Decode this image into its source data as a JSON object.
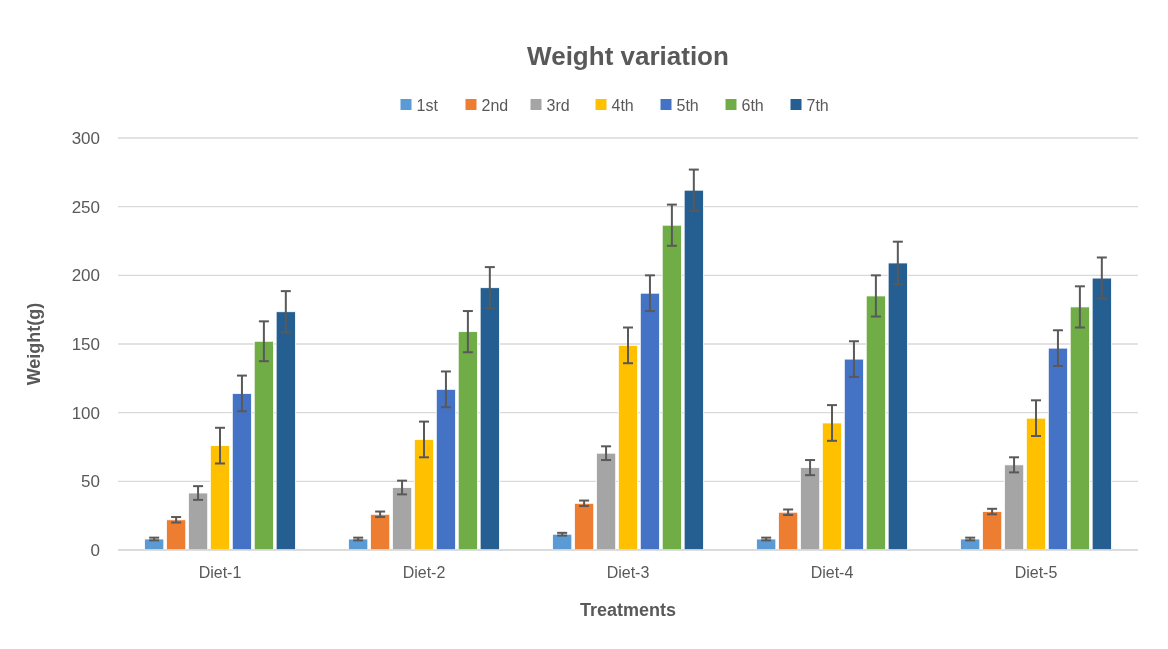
{
  "chart_data": {
    "type": "bar",
    "title": "Weight variation",
    "xlabel": "Treatments",
    "ylabel": "Weight(g)",
    "categories": [
      "Diet-1",
      "Diet-2",
      "Diet-3",
      "Diet-4",
      "Diet-5"
    ],
    "series": [
      {
        "name": "1st",
        "color": "#5b9bd5",
        "values": [
          8,
          8,
          11.5,
          8,
          8
        ],
        "errors": [
          1,
          1,
          1,
          1,
          1
        ]
      },
      {
        "name": "2nd",
        "color": "#ed7d31",
        "values": [
          22,
          26,
          34,
          27.5,
          28
        ],
        "errors": [
          2,
          2,
          2,
          2,
          2
        ]
      },
      {
        "name": "3rd",
        "color": "#a5a5a5",
        "values": [
          41.5,
          45.5,
          70.5,
          60,
          62
        ],
        "errors": [
          5,
          5,
          5,
          5.5,
          5.5
        ]
      },
      {
        "name": "4th",
        "color": "#ffc000",
        "values": [
          76,
          80.5,
          149,
          92.5,
          96
        ],
        "errors": [
          13,
          13,
          13,
          13,
          13
        ]
      },
      {
        "name": "5th",
        "color": "#4472c4",
        "values": [
          114,
          117,
          187,
          139,
          147
        ],
        "errors": [
          13,
          13,
          13,
          13,
          13
        ]
      },
      {
        "name": "6th",
        "color": "#70ad47",
        "values": [
          152,
          159,
          236.5,
          185,
          177
        ],
        "errors": [
          14.5,
          15,
          15,
          15,
          15
        ]
      },
      {
        "name": "7th",
        "color": "#255e91",
        "values": [
          173.5,
          191,
          262,
          209,
          198
        ],
        "errors": [
          15,
          15,
          15,
          15.5,
          15
        ]
      }
    ],
    "ylim": [
      0,
      300
    ],
    "yticks": [
      0,
      50,
      100,
      150,
      200,
      250,
      300
    ],
    "grid": "y",
    "legend": "top"
  }
}
